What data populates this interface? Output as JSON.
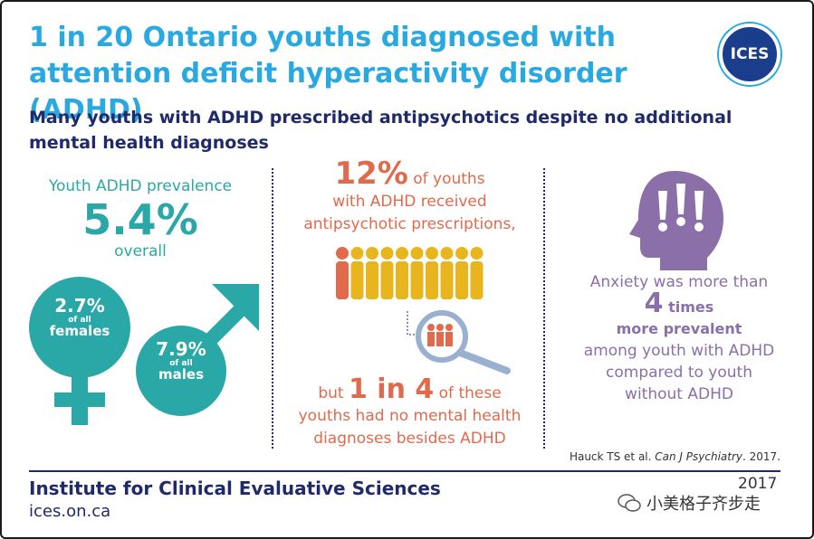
{
  "header": {
    "title": "1 in 20 Ontario youths diagnosed with attention deficit hyperactivity disorder (ADHD)",
    "logo_text": "ICES",
    "subtitle": "Many youths with ADHD prescribed antipsychotics despite no additional mental health diagnoses"
  },
  "prevalence": {
    "label": "Youth ADHD prevalence",
    "value": "5.4%",
    "overall": "overall",
    "females": {
      "pct": "2.7%",
      "of_all": "of all",
      "who": "females"
    },
    "males": {
      "pct": "7.9%",
      "of_all": "of all",
      "who": "males"
    }
  },
  "antipsychotics": {
    "pct": "12%",
    "line1_rest": "of youths",
    "line2": "with ADHD received",
    "line3": "antipsychotic prescriptions,",
    "but": "but",
    "ratio": "1 in 4",
    "ratio_rest": "of these",
    "line5": "youths had no mental health",
    "line6": "diagnoses besides ADHD"
  },
  "anxiety": {
    "line1": "Anxiety was more than",
    "number": "4",
    "times": "times",
    "more_prevalent": "more prevalent",
    "line4": "among youth with ADHD",
    "line5": "compared to youth",
    "line6": "without ADHD"
  },
  "citation": {
    "authors": "Hauck TS et al.",
    "journal": "Can J Psychiatry",
    "year": ". 2017."
  },
  "footer": {
    "org": "Institute for Clinical Evaluative Sciences",
    "url": "ices.on.ca",
    "year": "2017",
    "watermark": "小美格子齐步走"
  },
  "colors": {
    "title": "#2aa8e0",
    "navy": "#1f2a6b",
    "teal": "#2aa8a8",
    "coral": "#e06a4c",
    "gold": "#e8b51e",
    "purple": "#8a6fa8"
  }
}
